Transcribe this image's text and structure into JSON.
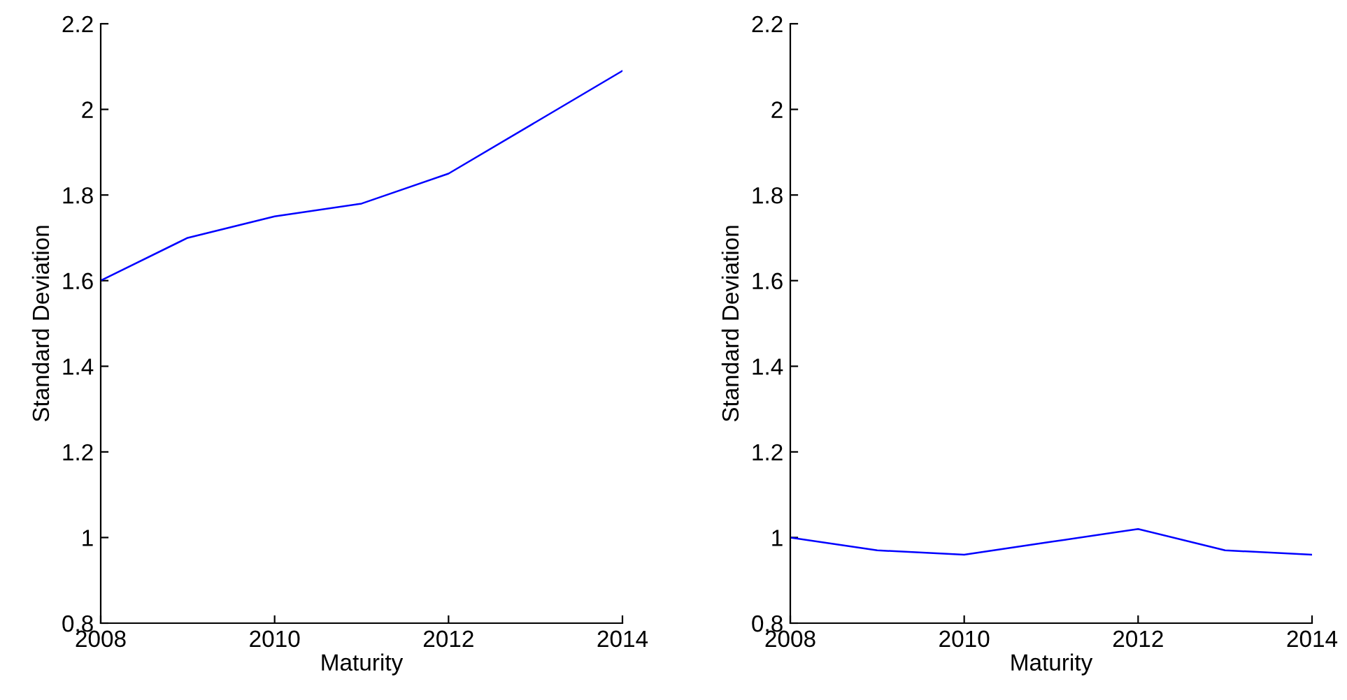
{
  "chart_data": [
    {
      "type": "line",
      "xlabel": "Maturity",
      "ylabel": "Standard Deviation",
      "x": [
        2008,
        2009,
        2010,
        2011,
        2012,
        2013,
        2014
      ],
      "series": [
        {
          "color": "#0000ff",
          "values": [
            1.6,
            1.7,
            1.75,
            1.78,
            1.85,
            1.97,
            2.09
          ]
        }
      ],
      "xlim": [
        2008,
        2014
      ],
      "xticks": [
        2008,
        2010,
        2012,
        2014
      ],
      "ylim": [
        0.8,
        2.2
      ],
      "yticks": [
        0.8,
        1,
        1.2,
        1.4,
        1.6,
        1.8,
        2,
        2.2
      ],
      "grid": false,
      "legend": false
    },
    {
      "type": "line",
      "xlabel": "Maturity",
      "ylabel": "Standard Deviation",
      "x": [
        2008,
        2009,
        2010,
        2011,
        2012,
        2013,
        2014
      ],
      "series": [
        {
          "color": "#0000ff",
          "values": [
            1.0,
            0.97,
            0.96,
            0.99,
            1.02,
            0.97,
            0.96
          ]
        }
      ],
      "xlim": [
        2008,
        2014
      ],
      "xticks": [
        2008,
        2010,
        2012,
        2014
      ],
      "ylim": [
        0.8,
        2.2
      ],
      "yticks": [
        0.8,
        1,
        1.2,
        1.4,
        1.6,
        1.8,
        2,
        2.2
      ],
      "grid": false,
      "legend": false
    }
  ]
}
